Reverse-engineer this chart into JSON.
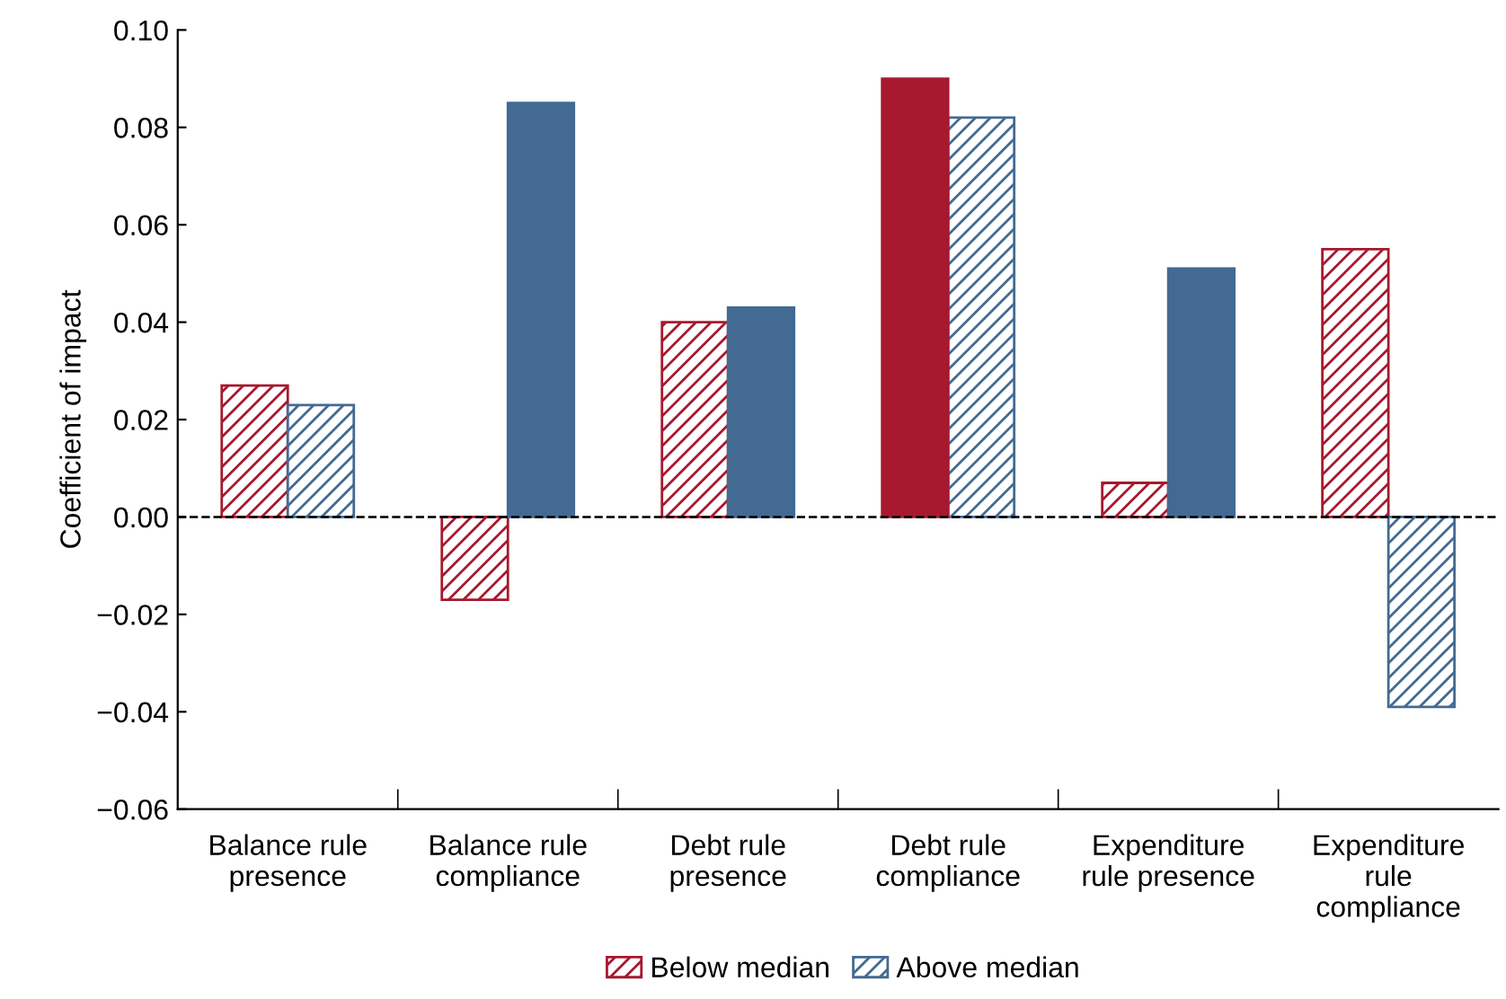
{
  "chart_data": {
    "type": "bar",
    "ylabel": "Coefficient of impact",
    "categories": [
      "Balance rule\npresence",
      "Balance rule\ncompliance",
      "Debt rule\npresence",
      "Debt rule\ncompliance",
      "Expenditure\nrule presence",
      "Expenditure\nrule\ncompliance"
    ],
    "series": [
      {
        "name": "Below median",
        "color": "#a6192e",
        "values": [
          0.027,
          -0.017,
          0.04,
          null,
          0.007,
          0.055
        ]
      },
      {
        "name": "Above median",
        "color": "#436a93",
        "values": [
          0.023,
          null,
          null,
          0.082,
          null,
          -0.039
        ]
      },
      {
        "color": "#a6192e",
        "values": [
          null,
          null,
          null,
          0.09,
          null,
          null
        ]
      },
      {
        "color": "#436a93",
        "values": [
          null,
          0.085,
          0.043,
          null,
          0.051,
          null
        ]
      }
    ],
    "ylim": [
      -0.06,
      0.1
    ],
    "yticks": [
      {
        "value": -0.06,
        "label": "−0.06"
      },
      {
        "value": -0.04,
        "label": "−0.04"
      },
      {
        "value": -0.02,
        "label": "−0.02"
      },
      {
        "value": 0.0,
        "label": "0.00"
      },
      {
        "value": 0.02,
        "label": "0.02"
      },
      {
        "value": 0.04,
        "label": "0.04"
      },
      {
        "value": 0.06,
        "label": "0.06"
      },
      {
        "value": 0.08,
        "label": "0.08"
      },
      {
        "value": 0.1,
        "label": "0.10"
      }
    ],
    "ref_lines": [
      {
        "axis": "y",
        "value": 0.0,
        "label": null,
        "color": "#000000",
        "line_style": "dashed"
      }
    ],
    "grid": false,
    "legend": "bottom"
  }
}
